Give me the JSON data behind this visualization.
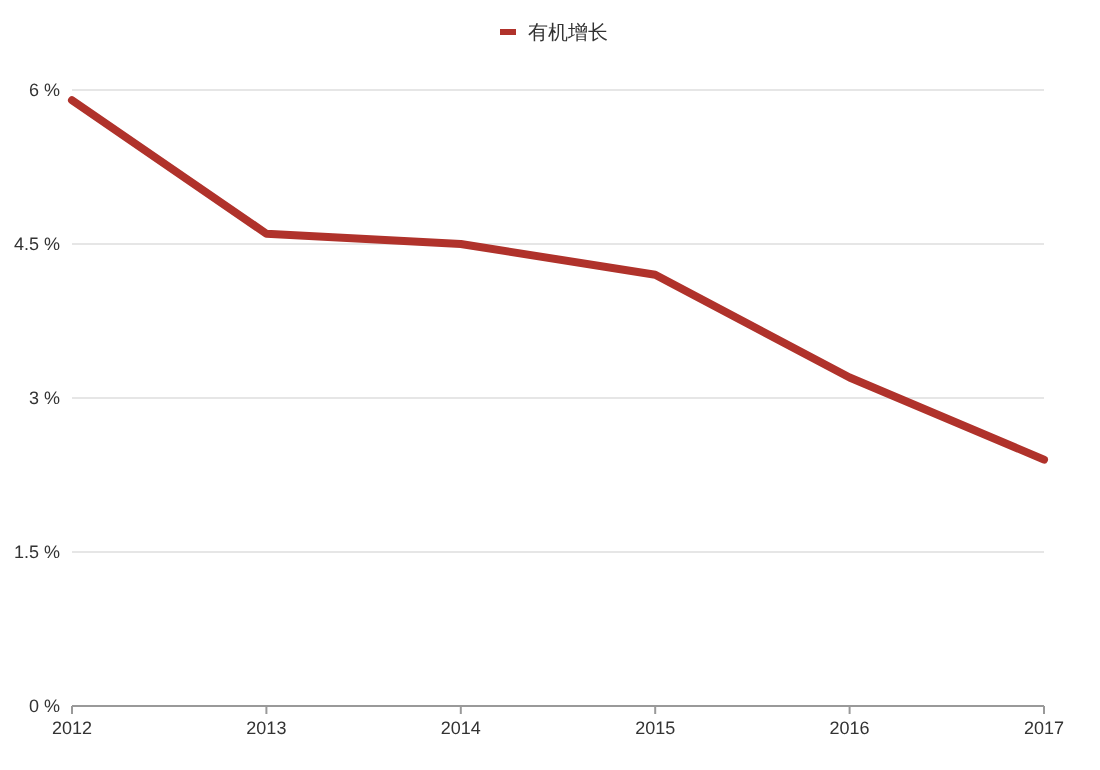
{
  "chart_data": {
    "type": "line",
    "x": [
      2012,
      2013,
      2014,
      2015,
      2016,
      2017
    ],
    "series": [
      {
        "name": "有机增长",
        "color": "#b0322b",
        "values": [
          5.9,
          4.6,
          4.5,
          4.2,
          3.2,
          2.4
        ]
      }
    ],
    "xlim": [
      2012,
      2017
    ],
    "xticks": [
      2012,
      2013,
      2014,
      2015,
      2016,
      2017
    ],
    "ylim": [
      0,
      6
    ],
    "yticks": [
      {
        "value": 0,
        "label": "0 %"
      },
      {
        "value": 1.5,
        "label": "1.5 %"
      },
      {
        "value": 3,
        "label": "3 %"
      },
      {
        "value": 4.5,
        "label": "4.5 %"
      },
      {
        "value": 6,
        "label": "6 %"
      }
    ],
    "grid": "y",
    "legend": "top",
    "marker": "none",
    "line_style": "solid"
  }
}
